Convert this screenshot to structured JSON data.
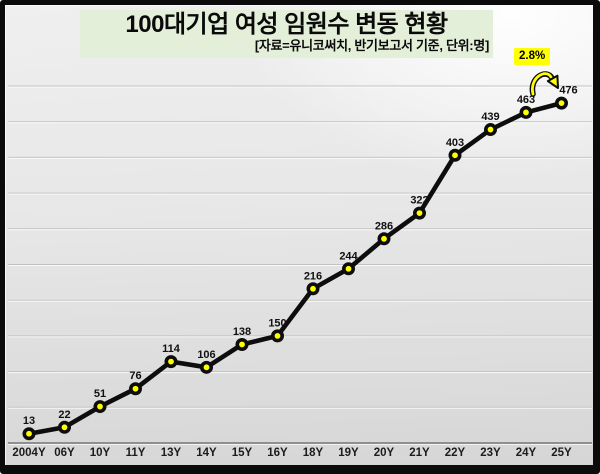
{
  "header": {
    "title": "100대기업 여성 임원수 변동 현황",
    "subtitle": "[자료=유니코써치, 반기보고서 기준, 단위:명]"
  },
  "growth_badge": {
    "label": "2.8%"
  },
  "chart_data": {
    "type": "line",
    "title": "100대기업 여성 임원수 변동 현황",
    "source_note": "[자료=유니코써치, 반기보고서 기준, 단위:명]",
    "categories": [
      "2004Y",
      "06Y",
      "10Y",
      "11Y",
      "13Y",
      "14Y",
      "15Y",
      "16Y",
      "18Y",
      "19Y",
      "20Y",
      "21Y",
      "22Y",
      "23Y",
      "24Y",
      "25Y"
    ],
    "values": [
      13,
      22,
      51,
      76,
      114,
      106,
      138,
      150,
      216,
      244,
      286,
      322,
      403,
      439,
      463,
      476
    ],
    "xlabel": "",
    "ylabel": "",
    "ylim": [
      0,
      500
    ],
    "grid": true,
    "gridline_step": 50,
    "legend": "none",
    "data_labels": "above",
    "annotations": [
      {
        "text": "2.8%",
        "target": "25Y",
        "meaning": "increase vs previous point"
      }
    ],
    "colors": {
      "line": "#0d0d0d",
      "marker_fill": "#ffff00",
      "marker_stroke": "#0d0d0d",
      "gridline": "#c2c2c2",
      "axis_line": "#8f8f8f",
      "title_bg": "#e4efd9",
      "badge_bg": "#ffff00"
    }
  }
}
